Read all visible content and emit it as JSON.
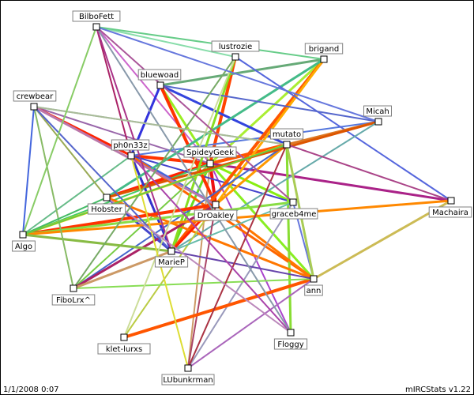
{
  "graph": {
    "nodes": [
      {
        "id": "BilboFett",
        "label": "BilboFett"
      },
      {
        "id": "lustrozie",
        "label": "lustrozie"
      },
      {
        "id": "brigand",
        "label": "brigand"
      },
      {
        "id": "bluewoad",
        "label": "bluewoad"
      },
      {
        "id": "crewbear",
        "label": "crewbear"
      },
      {
        "id": "Micah",
        "label": "Micah"
      },
      {
        "id": "mutato",
        "label": "mutato"
      },
      {
        "id": "ph0n33z",
        "label": "ph0n33z"
      },
      {
        "id": "SpideyGeek",
        "label": "SpideyGeek"
      },
      {
        "id": "Hobster",
        "label": "Hobster"
      },
      {
        "id": "DrOakley",
        "label": "DrOakley"
      },
      {
        "id": "graceb4me",
        "label": "graceb4me"
      },
      {
        "id": "Machaira",
        "label": "Machaira"
      },
      {
        "id": "Algo",
        "label": "Algo"
      },
      {
        "id": "MarieP",
        "label": "MarieP"
      },
      {
        "id": "ann",
        "label": "ann"
      },
      {
        "id": "FiboLrx",
        "label": "FiboLrx^"
      },
      {
        "id": "klet-lurxs",
        "label": "klet-lurxs"
      },
      {
        "id": "Floggy",
        "label": "Floggy"
      },
      {
        "id": "LUbunkrman",
        "label": "LUbunkrman"
      }
    ],
    "edges": [
      {
        "a": "SpideyGeek",
        "b": "ph0n33z",
        "color": "#ff3300",
        "width": 4
      },
      {
        "a": "SpideyGeek",
        "b": "Hobster",
        "color": "#ff2200",
        "width": 4
      },
      {
        "a": "SpideyGeek",
        "b": "mutato",
        "color": "#ff5500",
        "width": 4
      },
      {
        "a": "SpideyGeek",
        "b": "lustrozie",
        "color": "#ff4400",
        "width": 4
      },
      {
        "a": "SpideyGeek",
        "b": "DrOakley",
        "color": "#ee1111",
        "width": 4
      },
      {
        "a": "SpideyGeek",
        "b": "bluewoad",
        "color": "#99ee22",
        "width": 3
      },
      {
        "a": "SpideyGeek",
        "b": "brigand",
        "color": "#aaee33",
        "width": 3
      },
      {
        "a": "SpideyGeek",
        "b": "graceb4me",
        "color": "#88ee11",
        "width": 3
      },
      {
        "a": "SpideyGeek",
        "b": "Machaira",
        "color": "#aa2288",
        "width": 3
      },
      {
        "a": "SpideyGeek",
        "b": "ann",
        "color": "#88ee22",
        "width": 3
      },
      {
        "a": "SpideyGeek",
        "b": "MarieP",
        "color": "#66dd22",
        "width": 3
      },
      {
        "a": "SpideyGeek",
        "b": "Algo",
        "color": "#44cc66",
        "width": 2
      },
      {
        "a": "SpideyGeek",
        "b": "crewbear",
        "color": "#9966aa",
        "width": 2
      },
      {
        "a": "SpideyGeek",
        "b": "Floggy",
        "color": "#aa44cc",
        "width": 2
      },
      {
        "a": "SpideyGeek",
        "b": "FiboLrx",
        "color": "#77cc44",
        "width": 2
      },
      {
        "a": "SpideyGeek",
        "b": "LUbunkrman",
        "color": "#cc9966",
        "width": 2
      },
      {
        "a": "SpideyGeek",
        "b": "BilboFett",
        "color": "#cc66cc",
        "width": 2
      },
      {
        "a": "ph0n33z",
        "b": "crewbear",
        "color": "#ff2200",
        "width": 3
      },
      {
        "a": "ph0n33z",
        "b": "MarieP",
        "color": "#3333cc",
        "width": 3
      },
      {
        "a": "ph0n33z",
        "b": "DrOakley",
        "color": "#4466dd",
        "width": 3
      },
      {
        "a": "ph0n33z",
        "b": "ann",
        "color": "#ff6600",
        "width": 3
      },
      {
        "a": "ph0n33z",
        "b": "BilboFett",
        "color": "#aa2266",
        "width": 2
      },
      {
        "a": "ph0n33z",
        "b": "Algo",
        "color": "#66bb88",
        "width": 2
      },
      {
        "a": "ph0n33z",
        "b": "graceb4me",
        "color": "#4444cc",
        "width": 2
      },
      {
        "a": "ph0n33z",
        "b": "Micah",
        "color": "#5577dd",
        "width": 2
      },
      {
        "a": "bluewoad",
        "b": "DrOakley",
        "color": "#ff3300",
        "width": 4
      },
      {
        "a": "bluewoad",
        "b": "ph0n33z",
        "color": "#3333dd",
        "width": 3
      },
      {
        "a": "bluewoad",
        "b": "brigand",
        "color": "#66aa77",
        "width": 3
      },
      {
        "a": "bluewoad",
        "b": "mutato",
        "color": "#3344dd",
        "width": 3
      },
      {
        "a": "brigand",
        "b": "MarieP",
        "color": "#ff5500",
        "width": 4
      },
      {
        "a": "brigand",
        "b": "DrOakley",
        "color": "#ffaa00",
        "width": 3
      },
      {
        "a": "brigand",
        "b": "Hobster",
        "color": "#44bb88",
        "width": 3
      },
      {
        "a": "lustrozie",
        "b": "MarieP",
        "color": "#88dd22",
        "width": 3
      },
      {
        "a": "lustrozie",
        "b": "Machaira",
        "color": "#5566dd",
        "width": 2
      },
      {
        "a": "lustrozie",
        "b": "BilboFett",
        "color": "#88ddaa",
        "width": 2
      },
      {
        "a": "mutato",
        "b": "Algo",
        "color": "#ffcc00",
        "width": 3
      },
      {
        "a": "mutato",
        "b": "DrOakley",
        "color": "#ff9900",
        "width": 3
      },
      {
        "a": "mutato",
        "b": "Floggy",
        "color": "#88dd33",
        "width": 3
      },
      {
        "a": "mutato",
        "b": "Micah",
        "color": "#dd7722",
        "width": 3
      },
      {
        "a": "mutato",
        "b": "FiboLrx",
        "color": "#4466cc",
        "width": 2
      },
      {
        "a": "mutato",
        "b": "crewbear",
        "color": "#88bbaa",
        "width": 2
      },
      {
        "a": "Micah",
        "b": "Hobster",
        "color": "#dd5500",
        "width": 3
      },
      {
        "a": "Micah",
        "b": "bluewoad",
        "color": "#5566cc",
        "width": 2
      },
      {
        "a": "Micah",
        "b": "MarieP",
        "color": "#66aaaa",
        "width": 2
      },
      {
        "a": "Hobster",
        "b": "MarieP",
        "color": "#4444cc",
        "width": 3
      },
      {
        "a": "Hobster",
        "b": "ann",
        "color": "#ff7700",
        "width": 3
      },
      {
        "a": "Hobster",
        "b": "crewbear",
        "color": "#99aa55",
        "width": 2
      },
      {
        "a": "DrOakley",
        "b": "Algo",
        "color": "#ff3300",
        "width": 4
      },
      {
        "a": "DrOakley",
        "b": "MarieP",
        "color": "#ff2200",
        "width": 3
      },
      {
        "a": "DrOakley",
        "b": "ann",
        "color": "#ff7700",
        "width": 3
      },
      {
        "a": "DrOakley",
        "b": "crewbear",
        "color": "#bb77aa",
        "width": 3
      },
      {
        "a": "DrOakley",
        "b": "klet-lurxs",
        "color": "#bbcc44",
        "width": 2
      },
      {
        "a": "DrOakley",
        "b": "LUbunkrman",
        "color": "#aa4466",
        "width": 2
      },
      {
        "a": "DrOakley",
        "b": "FiboLrx",
        "color": "#aa2266",
        "width": 3
      },
      {
        "a": "graceb4me",
        "b": "Algo",
        "color": "#88dd44",
        "width": 3
      },
      {
        "a": "graceb4me",
        "b": "ann",
        "color": "#6677dd",
        "width": 2
      },
      {
        "a": "graceb4me",
        "b": "MarieP",
        "color": "#66bbaa",
        "width": 2
      },
      {
        "a": "graceb4me",
        "b": "LUbunkrman",
        "color": "#9999bb",
        "width": 2
      },
      {
        "a": "Machaira",
        "b": "ann",
        "color": "#ccbb55",
        "width": 3
      },
      {
        "a": "Machaira",
        "b": "Algo",
        "color": "#ff8800",
        "width": 3
      },
      {
        "a": "Machaira",
        "b": "mutato",
        "color": "#aa4488",
        "width": 2
      },
      {
        "a": "ann",
        "b": "klet-lurxs",
        "color": "#ff5500",
        "width": 4
      },
      {
        "a": "ann",
        "b": "FiboLrx",
        "color": "#88dd55",
        "width": 2
      },
      {
        "a": "ann",
        "b": "MarieP",
        "color": "#6644aa",
        "width": 2
      },
      {
        "a": "ann",
        "b": "LUbunkrman",
        "color": "#aa66bb",
        "width": 2
      },
      {
        "a": "ann",
        "b": "mutato",
        "color": "#aacc55",
        "width": 3
      },
      {
        "a": "MarieP",
        "b": "BilboFett",
        "color": "#aa3388",
        "width": 2
      },
      {
        "a": "MarieP",
        "b": "crewbear",
        "color": "#5566cc",
        "width": 2
      },
      {
        "a": "MarieP",
        "b": "Algo",
        "color": "#88bb44",
        "width": 3
      },
      {
        "a": "MarieP",
        "b": "FiboLrx",
        "color": "#cc9966",
        "width": 3
      },
      {
        "a": "FiboLrx",
        "b": "crewbear",
        "color": "#88bb66",
        "width": 2
      },
      {
        "a": "FiboLrx",
        "b": "lustrozie",
        "color": "#77aa66",
        "width": 2
      },
      {
        "a": "klet-lurxs",
        "b": "lustrozie",
        "color": "#ccdd99",
        "width": 2
      },
      {
        "a": "LUbunkrman",
        "b": "ph0n33z",
        "color": "#dddd33",
        "width": 2
      },
      {
        "a": "LUbunkrman",
        "b": "mutato",
        "color": "#aa3344",
        "width": 2
      },
      {
        "a": "Floggy",
        "b": "ph0n33z",
        "color": "#aa44aa",
        "width": 2
      },
      {
        "a": "Floggy",
        "b": "Hobster",
        "color": "#bb88bb",
        "width": 2
      },
      {
        "a": "Floggy",
        "b": "BilboFett",
        "color": "#8899aa",
        "width": 2
      },
      {
        "a": "crewbear",
        "b": "Algo",
        "color": "#4466dd",
        "width": 2
      },
      {
        "a": "crewbear",
        "b": "mutato",
        "color": "#aabb99",
        "width": 2
      },
      {
        "a": "BilboFett",
        "b": "Algo",
        "color": "#88cc66",
        "width": 2
      },
      {
        "a": "BilboFett",
        "b": "brigand",
        "color": "#66cc88",
        "width": 2
      },
      {
        "a": "BilboFett",
        "b": "Micah",
        "color": "#6677dd",
        "width": 2
      },
      {
        "a": "BilboFett",
        "b": "graceb4me",
        "color": "#aa5599",
        "width": 2
      },
      {
        "a": "Algo",
        "b": "Hobster",
        "color": "#44bb66",
        "width": 2
      },
      {
        "a": "Algo",
        "b": "mutato",
        "color": "#66cc44",
        "width": 2
      }
    ]
  },
  "footer": {
    "timestamp": "1/1/2008 0:07",
    "version": "mIRCStats v1.22"
  }
}
